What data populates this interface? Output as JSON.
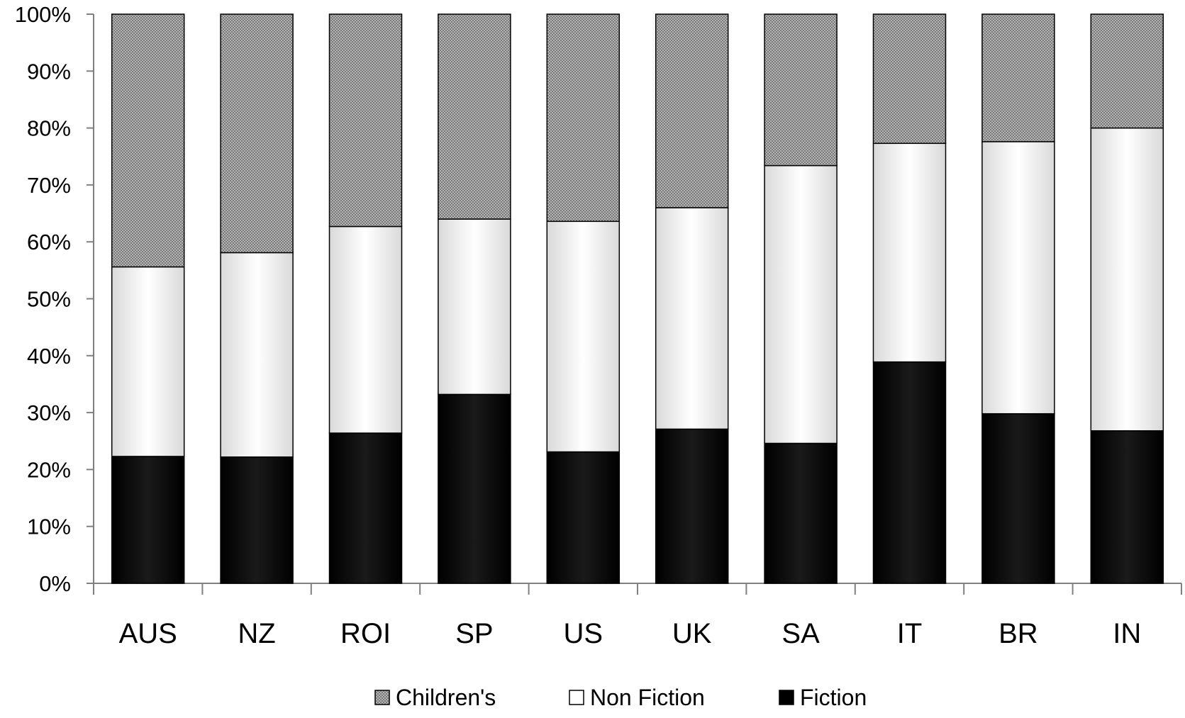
{
  "chart_data": {
    "type": "bar",
    "stacked": true,
    "normalized": true,
    "categories": [
      "AUS",
      "NZ",
      "ROI",
      "SP",
      "US",
      "UK",
      "SA",
      "IT",
      "BR",
      "IN"
    ],
    "series": [
      {
        "name": "Fiction",
        "values": [
          22.3,
          22.2,
          26.4,
          33.2,
          23.1,
          27.1,
          24.6,
          38.9,
          29.8,
          26.8
        ],
        "color": "#000000",
        "pattern": "solid"
      },
      {
        "name": "Non Fiction",
        "values": [
          33.3,
          35.9,
          36.3,
          30.8,
          40.5,
          38.9,
          48.8,
          38.4,
          47.8,
          53.2
        ],
        "color": "#ffffff",
        "pattern": "white-gradient"
      },
      {
        "name": "Children's",
        "values": [
          44.4,
          41.9,
          37.3,
          36.0,
          36.4,
          34.0,
          26.6,
          22.7,
          22.4,
          20.0
        ],
        "color": "#8c8c8c",
        "pattern": "checker"
      }
    ],
    "y_ticks": [
      "0%",
      "10%",
      "20%",
      "30%",
      "40%",
      "50%",
      "60%",
      "70%",
      "80%",
      "90%",
      "100%"
    ],
    "ylim": [
      0,
      100
    ],
    "grid": false,
    "legend_position": "bottom",
    "legend_order": [
      "Children's",
      "Non Fiction",
      "Fiction"
    ],
    "title": "",
    "xlabel": "",
    "ylabel": ""
  }
}
